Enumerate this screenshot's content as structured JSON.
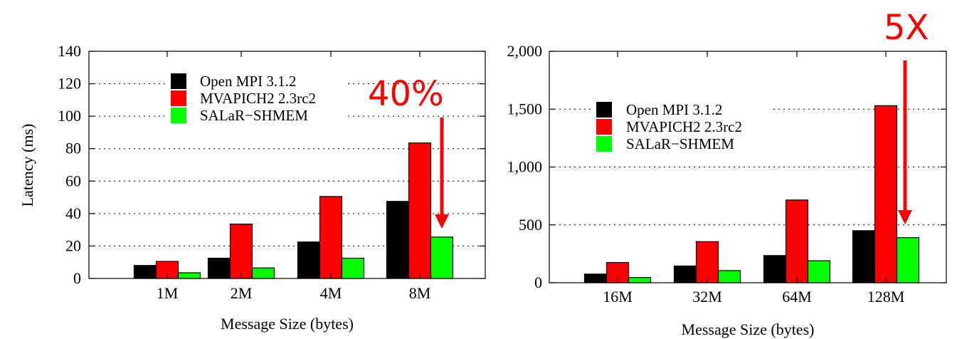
{
  "chart_data": [
    {
      "type": "bar",
      "xlabel": "Message Size (bytes)",
      "ylabel": "Latency (ms)",
      "categories": [
        "1M",
        "2M",
        "4M",
        "8M"
      ],
      "ylim": [
        0,
        140
      ],
      "yticks": [
        "0",
        "20",
        "40",
        "60",
        "80",
        "100",
        "120",
        "140"
      ],
      "ytick_values": [
        0,
        20,
        40,
        60,
        80,
        100,
        120,
        140
      ],
      "grid": true,
      "legend_position": "top-center",
      "series": [
        {
          "name": "Open MPI 3.1.2",
          "color": "#000000",
          "values": [
            8,
            12.5,
            22.5,
            47.5
          ]
        },
        {
          "name": "MVAPICH2 2.3rc2",
          "color": "#ff0000",
          "values": [
            10.5,
            33.5,
            50.5,
            83.5
          ]
        },
        {
          "name": "SALaR−SHMEM",
          "color": "#00ff00",
          "values": [
            3.5,
            6.5,
            12.5,
            25.5
          ]
        }
      ],
      "annotation": {
        "text": "40%",
        "color": "#ff0000",
        "target_category": "8M"
      }
    },
    {
      "type": "bar",
      "xlabel": "Message Size (bytes)",
      "ylabel": "",
      "categories": [
        "16M",
        "32M",
        "64M",
        "128M"
      ],
      "ylim": [
        0,
        2000
      ],
      "yticks": [
        "0",
        "500",
        "1,000",
        "1,500",
        "2,000"
      ],
      "ytick_values": [
        0,
        500,
        1000,
        1500,
        2000
      ],
      "grid": true,
      "legend_position": "top-left",
      "series": [
        {
          "name": "Open MPI 3.1.2",
          "color": "#000000",
          "values": [
            75,
            145,
            235,
            450
          ]
        },
        {
          "name": "MVAPICH2 2.3rc2",
          "color": "#ff0000",
          "values": [
            175,
            355,
            715,
            1530
          ]
        },
        {
          "name": "SALaR−SHMEM",
          "color": "#00ff00",
          "values": [
            45,
            105,
            190,
            390
          ]
        }
      ],
      "annotation": {
        "text": "5X",
        "color": "#ff0000",
        "target_category": "128M"
      }
    }
  ]
}
